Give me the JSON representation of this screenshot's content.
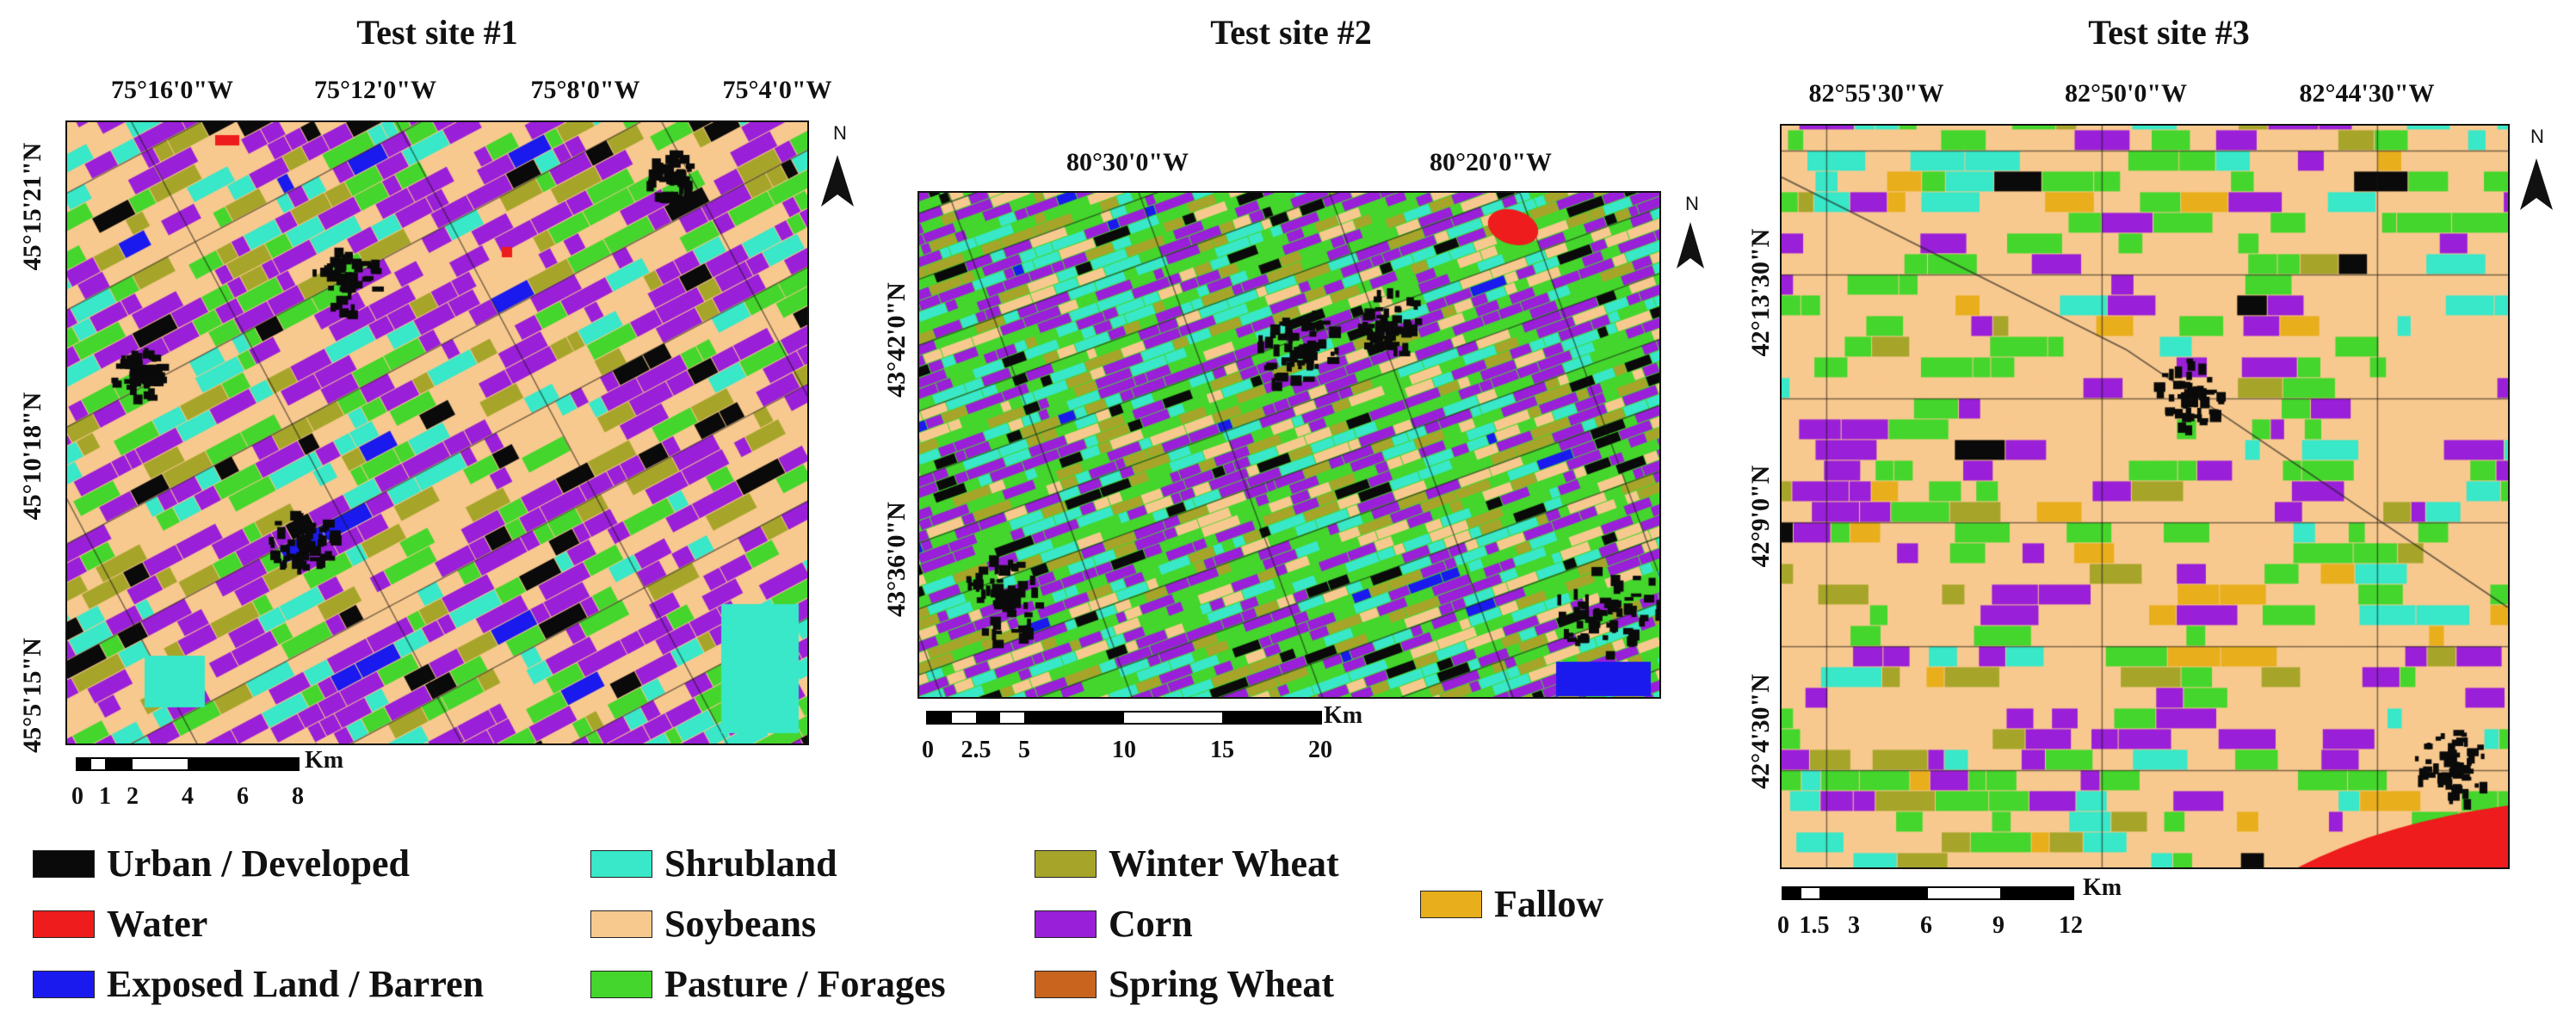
{
  "colors": {
    "urban": "#0a0a0a",
    "water": "#ee1c1c",
    "barren": "#1a1aee",
    "shrubland": "#38e8c8",
    "soybeans": "#f8c98e",
    "pasture": "#44d62c",
    "winter_wheat": "#a6a52a",
    "corn": "#9a1fd8",
    "spring_wheat": "#c8641e",
    "fallow": "#e8ae1c"
  },
  "sites": [
    {
      "title": "Test site #1",
      "lon_labels": [
        "75°16'0\"W",
        "75°12'0\"W",
        "75°8'0\"W",
        "75°4'0\"W"
      ],
      "lat_labels": [
        "45°15'21\"N",
        "45°10'18\"N",
        "45°5'15\"N"
      ],
      "scale_ticks": [
        "0",
        "1",
        "2",
        "4",
        "6",
        "8"
      ],
      "scale_unit": "Km",
      "north": "N"
    },
    {
      "title": "Test site #2",
      "lon_labels": [
        "80°30'0\"W",
        "80°20'0\"W"
      ],
      "lat_labels": [
        "43°42'0\"N",
        "43°36'0\"N"
      ],
      "scale_ticks": [
        "0",
        "2.5",
        "5",
        "10",
        "15",
        "20"
      ],
      "scale_unit": "Km",
      "north": "N"
    },
    {
      "title": "Test site #3",
      "lon_labels": [
        "82°55'30\"W",
        "82°50'0\"W",
        "82°44'30\"W"
      ],
      "lat_labels": [
        "42°13'30\"N",
        "42°9'0\"N",
        "42°4'30\"N"
      ],
      "scale_ticks": [
        "0",
        "1.5",
        "3",
        "6",
        "9",
        "12"
      ],
      "scale_unit": "Km",
      "north": "N"
    }
  ],
  "legend": [
    {
      "label": "Urban / Developed",
      "color": "#0a0a0a"
    },
    {
      "label": "Water",
      "color": "#ee1c1c"
    },
    {
      "label": "Exposed Land / Barren",
      "color": "#1a1aee"
    },
    {
      "label": "Shrubland",
      "color": "#38e8c8"
    },
    {
      "label": "Soybeans",
      "color": "#f8c98e"
    },
    {
      "label": "Pasture / Forages",
      "color": "#44d62c"
    },
    {
      "label": "Winter Wheat",
      "color": "#a6a52a"
    },
    {
      "label": "Corn",
      "color": "#9a1fd8"
    },
    {
      "label": "Spring Wheat",
      "color": "#c8641e"
    },
    {
      "label": "Fallow",
      "color": "#e8ae1c"
    }
  ]
}
